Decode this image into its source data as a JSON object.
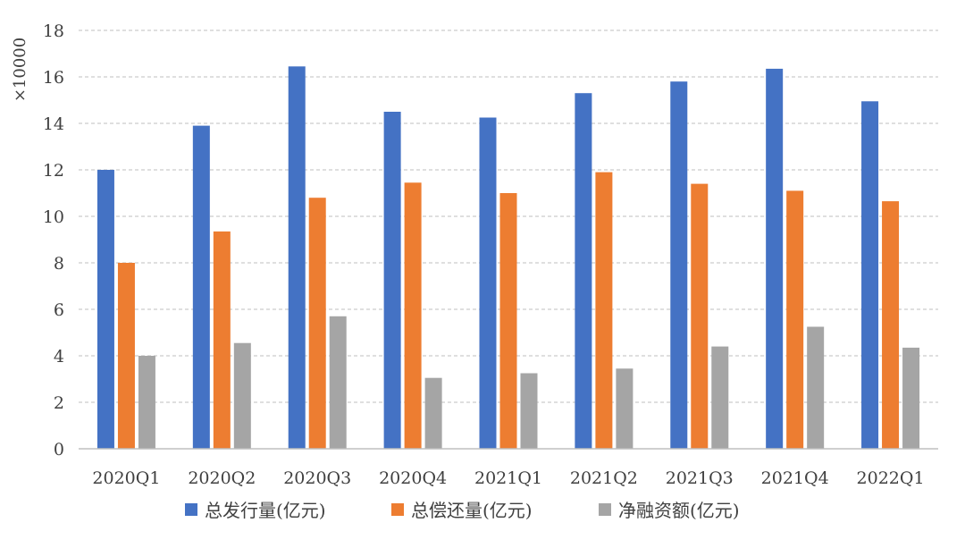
{
  "chart_data": {
    "type": "bar",
    "unit_label": "×10000",
    "categories": [
      "2020Q1",
      "2020Q2",
      "2020Q3",
      "2020Q4",
      "2021Q1",
      "2021Q2",
      "2021Q3",
      "2021Q4",
      "2022Q1"
    ],
    "series": [
      {
        "name": "总发行量(亿元)",
        "color": "#4472c4",
        "values": [
          12.0,
          13.9,
          16.45,
          14.5,
          14.25,
          15.3,
          15.8,
          16.35,
          14.95
        ]
      },
      {
        "name": "总偿还量(亿元)",
        "color": "#ed7d31",
        "values": [
          8.0,
          9.35,
          10.8,
          11.45,
          11.0,
          11.9,
          11.4,
          11.1,
          10.65
        ]
      },
      {
        "name": "净融资额(亿元)",
        "color": "#a5a5a5",
        "values": [
          4.0,
          4.55,
          5.7,
          3.05,
          3.25,
          3.45,
          4.4,
          5.25,
          4.35
        ]
      }
    ],
    "ylim": [
      0,
      18
    ],
    "yticks": [
      0,
      2,
      4,
      6,
      8,
      10,
      12,
      14,
      16,
      18
    ],
    "grid": true,
    "legend_position": "bottom"
  }
}
